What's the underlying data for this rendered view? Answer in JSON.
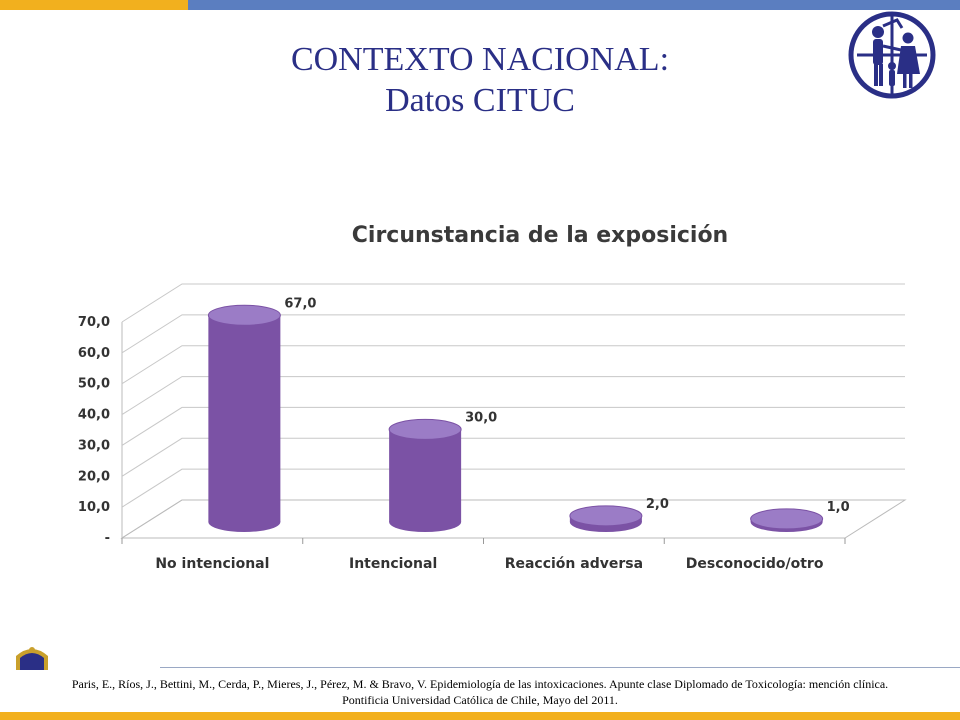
{
  "slide": {
    "title_line1": "CONTEXTO NACIONAL:",
    "title_line2": "Datos CITUC",
    "footer_line1": "Paris, E., Ríos, J., Bettini, M., Cerda, P., Mieres, J., Pérez, M. & Bravo, V. Epidemiología de las intoxicaciones. Apunte clase Diplomado de Toxicología: mención clínica.",
    "footer_line2": "Pontificia Universidad Católica de Chile, Mayo del 2011."
  },
  "colors": {
    "bar": "#7b52a5",
    "bar_top": "#9b7cc6",
    "accent_yellow": "#f2b01e",
    "accent_blue": "#5b7ec0",
    "title_blue": "#2a2f86"
  },
  "chart_data": {
    "type": "bar",
    "title": "Circunstancia de la exposición",
    "categories": [
      "No intencional",
      "Intencional",
      "Reacción adversa",
      "Desconocido/otro"
    ],
    "values": [
      67.0,
      30.0,
      2.0,
      1.0
    ],
    "value_labels": [
      "67,0",
      "30,0",
      "2,0",
      "1,0"
    ],
    "y_ticks": [
      "-",
      "10,0",
      "20,0",
      "30,0",
      "40,0",
      "50,0",
      "60,0",
      "70,0"
    ],
    "ylim": [
      0,
      70
    ],
    "grid": true,
    "style": "3d-cylinder"
  }
}
